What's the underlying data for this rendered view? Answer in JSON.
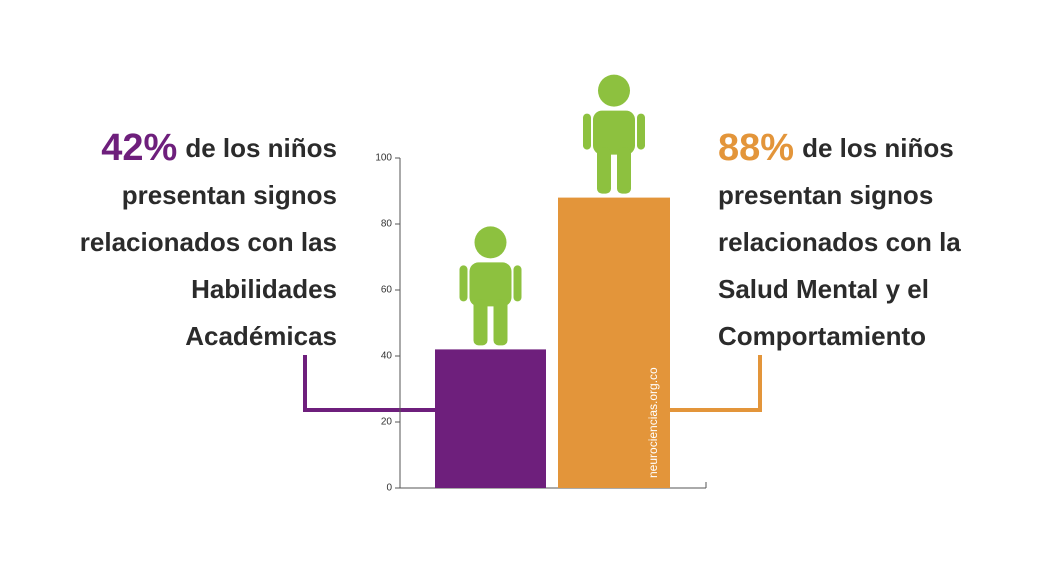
{
  "chart_data": {
    "type": "bar",
    "categories": [
      null,
      null
    ],
    "values": [
      42,
      88
    ],
    "value_labels": [
      "42%",
      "88%"
    ],
    "colors": [
      "#6e1f7c",
      "#e3953a"
    ],
    "ylim": [
      0,
      100
    ],
    "yticks": [
      0,
      20,
      40,
      60,
      80,
      100
    ],
    "annotations": [
      {
        "lines": [
          "de los niños",
          "presentan signos",
          "relacionados con las",
          "Habilidades",
          "Académicas"
        ]
      },
      {
        "lines": [
          "de los niños",
          "presentan signos",
          "relacionados con la",
          "Salud Mental y el",
          "Comportamiento"
        ]
      }
    ],
    "watermark": "neurociencias.org.co"
  }
}
